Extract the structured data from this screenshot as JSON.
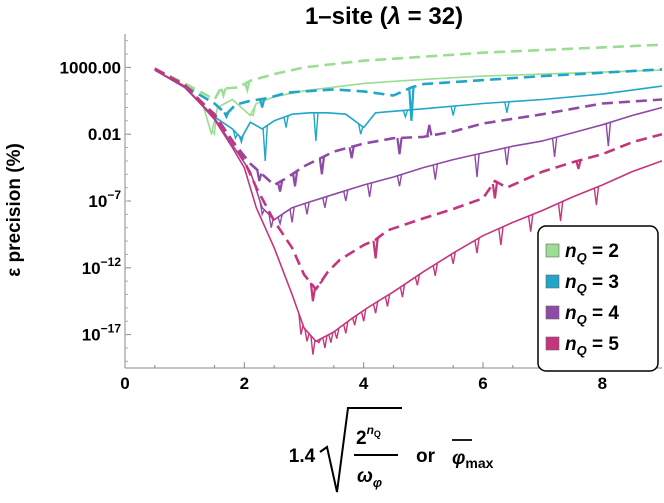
{
  "chart_data": {
    "type": "line",
    "title_prefix": "1–site (",
    "title_lambda": "λ",
    "title_value": " = 32)",
    "ylabel": "ε precision (%)",
    "xlabel": {
      "coef": "1.4",
      "num_base": "2",
      "num_sup": "n",
      "num_sup_sub": "Q",
      "den": "ω",
      "den_sub": "φ",
      "or": "or",
      "phi": "φ",
      "phi_sub": "max"
    },
    "xlim": [
      0,
      9
    ],
    "ylim_log10": [
      -19.5,
      5.5
    ],
    "yscale": "log",
    "x_ticks": [
      "0",
      "2",
      "4",
      "6",
      "8"
    ],
    "y_ticks": [
      {
        "log": 3,
        "base": "1000.00",
        "exp": ""
      },
      {
        "log": -2,
        "base": "0.01",
        "exp": ""
      },
      {
        "log": -7,
        "base": "10",
        "exp": "−7"
      },
      {
        "log": -12,
        "base": "10",
        "exp": "−12"
      },
      {
        "log": -17,
        "base": "10",
        "exp": "−17"
      }
    ],
    "legend_position": "right",
    "legend": [
      {
        "n": "n",
        "sub": "Q",
        "eq": " = 2",
        "color": "#9bdd93"
      },
      {
        "n": "n",
        "sub": "Q",
        "eq": " = 3",
        "color": "#1fa6c9"
      },
      {
        "n": "n",
        "sub": "Q",
        "eq": " = 4",
        "color": "#8e4aa6"
      },
      {
        "n": "n",
        "sub": "Q",
        "eq": " = 5",
        "color": "#c4357c"
      }
    ],
    "series": [
      {
        "nQ": 2,
        "style": "solid",
        "color": "#9bdd93",
        "points": [
          [
            0.5,
            2.8
          ],
          [
            1.0,
            1.5
          ],
          [
            1.3,
            0.3
          ],
          [
            1.45,
            -2.0
          ],
          [
            1.55,
            0.0
          ],
          [
            1.8,
            0.6
          ],
          [
            2.1,
            -0.6
          ],
          [
            2.2,
            0.3
          ],
          [
            2.5,
            0.8
          ],
          [
            3.0,
            1.25
          ],
          [
            4.0,
            1.8
          ],
          [
            5.0,
            2.1
          ],
          [
            6.0,
            2.35
          ],
          [
            7.0,
            2.5
          ],
          [
            8.0,
            2.65
          ],
          [
            9.0,
            2.8
          ]
        ],
        "spikes": [
          [
            1.5,
            -2.0
          ],
          [
            2.15,
            -0.6
          ]
        ]
      },
      {
        "nQ": 2,
        "style": "dashed",
        "color": "#9bdd93",
        "points": [
          [
            0.5,
            2.9
          ],
          [
            1.0,
            1.8
          ],
          [
            1.5,
            0.6
          ],
          [
            1.6,
            1.4
          ],
          [
            1.9,
            1.5
          ],
          [
            2.1,
            2.0
          ],
          [
            2.5,
            2.5
          ],
          [
            3.0,
            3.0
          ],
          [
            4.0,
            3.5
          ],
          [
            5.0,
            3.8
          ],
          [
            6.0,
            4.1
          ],
          [
            7.0,
            4.3
          ],
          [
            8.0,
            4.5
          ],
          [
            9.0,
            4.7
          ]
        ],
        "spikes": [
          [
            1.65,
            0.9
          ],
          [
            2.05,
            1.3
          ]
        ]
      },
      {
        "nQ": 3,
        "style": "solid",
        "color": "#1fa6c9",
        "points": [
          [
            0.5,
            2.8
          ],
          [
            1.0,
            1.5
          ],
          [
            1.5,
            -0.7
          ],
          [
            1.8,
            -1.6
          ],
          [
            1.95,
            -2.3
          ],
          [
            2.1,
            -1.1
          ],
          [
            2.3,
            -1.6
          ],
          [
            2.5,
            -1.0
          ],
          [
            2.8,
            -0.5
          ],
          [
            3.1,
            -0.4
          ],
          [
            3.4,
            -0.4
          ],
          [
            3.7,
            -0.5
          ],
          [
            4.0,
            -1.5
          ],
          [
            4.2,
            -0.4
          ],
          [
            5.0,
            -0.1
          ],
          [
            6.0,
            0.3
          ],
          [
            7.0,
            0.6
          ],
          [
            8.0,
            1.0
          ],
          [
            9.0,
            1.6
          ]
        ],
        "spikes": [
          [
            1.85,
            -2.3
          ],
          [
            1.95,
            -2.6
          ],
          [
            2.35,
            -4.0
          ],
          [
            2.7,
            -1.5
          ],
          [
            3.2,
            -2.5
          ],
          [
            3.95,
            -2.0
          ],
          [
            4.7,
            -0.7
          ],
          [
            5.5,
            -0.6
          ],
          [
            6.4,
            -0.4
          ]
        ]
      },
      {
        "nQ": 3,
        "style": "dashed",
        "color": "#1fa6c9",
        "points": [
          [
            0.5,
            2.9
          ],
          [
            1.0,
            1.6
          ],
          [
            1.5,
            0.3
          ],
          [
            1.7,
            -0.5
          ],
          [
            1.85,
            0.2
          ],
          [
            2.1,
            0.5
          ],
          [
            2.4,
            0.7
          ],
          [
            2.7,
            1.1
          ],
          [
            3.0,
            1.2
          ],
          [
            3.5,
            1.35
          ],
          [
            4.0,
            1.2
          ],
          [
            4.5,
            0.9
          ],
          [
            4.8,
            1.5
          ],
          [
            5.0,
            1.75
          ],
          [
            6.0,
            2.05
          ],
          [
            7.0,
            2.35
          ],
          [
            8.0,
            2.6
          ],
          [
            9.0,
            2.85
          ]
        ],
        "spikes": [
          [
            1.7,
            -0.7
          ],
          [
            2.3,
            0.0
          ],
          [
            4.8,
            -1.0
          ]
        ]
      },
      {
        "nQ": 4,
        "style": "solid",
        "color": "#8e4aa6",
        "points": [
          [
            0.5,
            2.8
          ],
          [
            1.0,
            1.5
          ],
          [
            1.5,
            -0.8
          ],
          [
            1.8,
            -2.8
          ],
          [
            2.1,
            -4.8
          ],
          [
            2.3,
            -7.5
          ],
          [
            2.5,
            -8.4
          ],
          [
            2.8,
            -7.5
          ],
          [
            3.0,
            -7.2
          ],
          [
            3.5,
            -6.5
          ],
          [
            4.0,
            -5.8
          ],
          [
            4.5,
            -5.2
          ],
          [
            5.0,
            -4.5
          ],
          [
            5.5,
            -3.9
          ],
          [
            6.0,
            -3.4
          ],
          [
            6.5,
            -2.9
          ],
          [
            7.0,
            -2.5
          ],
          [
            7.5,
            -1.9
          ],
          [
            8.0,
            -1.3
          ],
          [
            8.5,
            -0.6
          ],
          [
            9.0,
            0.0
          ]
        ],
        "spikes": [
          [
            2.3,
            -8.0
          ],
          [
            2.45,
            -9.0
          ],
          [
            2.6,
            -8.7
          ],
          [
            2.8,
            -8.6
          ],
          [
            3.05,
            -8.0
          ],
          [
            3.35,
            -7.5
          ],
          [
            3.7,
            -7.0
          ],
          [
            4.1,
            -6.7
          ],
          [
            4.6,
            -5.9
          ],
          [
            5.2,
            -5.4
          ],
          [
            5.9,
            -5.2
          ],
          [
            6.4,
            -4.3
          ],
          [
            7.2,
            -3.7
          ],
          [
            8.1,
            -2.9
          ]
        ]
      },
      {
        "nQ": 4,
        "style": "dashed",
        "color": "#8e4aa6",
        "points": [
          [
            0.5,
            2.9
          ],
          [
            1.0,
            1.6
          ],
          [
            1.5,
            -0.5
          ],
          [
            1.8,
            -2.5
          ],
          [
            2.1,
            -4.2
          ],
          [
            2.3,
            -5.0
          ],
          [
            2.5,
            -5.8
          ],
          [
            2.7,
            -5.3
          ],
          [
            3.0,
            -4.4
          ],
          [
            3.5,
            -3.3
          ],
          [
            4.0,
            -2.7
          ],
          [
            4.5,
            -2.3
          ],
          [
            5.0,
            -2.2
          ],
          [
            5.5,
            -1.8
          ],
          [
            6.0,
            -1.2
          ],
          [
            7.0,
            -0.5
          ],
          [
            8.0,
            0.3
          ],
          [
            9.0,
            0.6
          ]
        ],
        "spikes": [
          [
            2.25,
            -5.5
          ],
          [
            2.6,
            -6.3
          ],
          [
            2.85,
            -5.9
          ],
          [
            3.3,
            -5.0
          ],
          [
            3.8,
            -3.8
          ],
          [
            4.6,
            -3.5
          ],
          [
            5.1,
            -1.3
          ]
        ]
      },
      {
        "nQ": 5,
        "style": "solid",
        "color": "#c4357c",
        "points": [
          [
            0.5,
            2.8
          ],
          [
            1.0,
            1.6
          ],
          [
            1.5,
            -0.9
          ],
          [
            1.8,
            -3.0
          ],
          [
            2.0,
            -4.5
          ],
          [
            2.2,
            -7.5
          ],
          [
            2.5,
            -10.5
          ],
          [
            2.8,
            -14.0
          ],
          [
            3.0,
            -16.5
          ],
          [
            3.2,
            -17.5
          ],
          [
            3.5,
            -16.8
          ],
          [
            3.8,
            -15.8
          ],
          [
            4.1,
            -14.9
          ],
          [
            4.5,
            -13.8
          ],
          [
            5.0,
            -12.3
          ],
          [
            5.5,
            -10.9
          ],
          [
            6.0,
            -9.6
          ],
          [
            6.5,
            -8.6
          ],
          [
            7.0,
            -7.7
          ],
          [
            7.5,
            -6.7
          ],
          [
            8.0,
            -5.8
          ],
          [
            8.5,
            -4.8
          ],
          [
            9.0,
            -4.0
          ]
        ],
        "spikes": [
          [
            2.95,
            -17.0
          ],
          [
            3.05,
            -17.5
          ],
          [
            3.15,
            -18.5
          ],
          [
            3.25,
            -17.6
          ],
          [
            3.35,
            -18.0
          ],
          [
            3.45,
            -17.6
          ],
          [
            3.55,
            -17.3
          ],
          [
            3.7,
            -16.9
          ],
          [
            3.85,
            -16.3
          ],
          [
            4.0,
            -16.0
          ],
          [
            4.2,
            -15.4
          ],
          [
            4.4,
            -14.9
          ],
          [
            4.65,
            -14.2
          ],
          [
            4.9,
            -13.3
          ],
          [
            5.2,
            -12.6
          ],
          [
            5.5,
            -11.7
          ],
          [
            5.9,
            -10.9
          ],
          [
            6.3,
            -10.3
          ],
          [
            6.8,
            -9.3
          ],
          [
            7.3,
            -8.5
          ],
          [
            7.9,
            -7.3
          ]
        ]
      },
      {
        "nQ": 5,
        "style": "dashed",
        "color": "#c4357c",
        "points": [
          [
            0.5,
            2.9
          ],
          [
            1.0,
            1.7
          ],
          [
            1.5,
            -0.6
          ],
          [
            1.8,
            -2.5
          ],
          [
            2.0,
            -4.0
          ],
          [
            2.2,
            -6.0
          ],
          [
            2.5,
            -8.5
          ],
          [
            2.8,
            -10.5
          ],
          [
            3.0,
            -12.5
          ],
          [
            3.2,
            -13.6
          ],
          [
            3.4,
            -12.3
          ],
          [
            3.6,
            -11.4
          ],
          [
            4.0,
            -10.3
          ],
          [
            4.2,
            -9.9
          ],
          [
            4.4,
            -9.2
          ],
          [
            5.0,
            -8.3
          ],
          [
            5.5,
            -7.6
          ],
          [
            6.0,
            -6.8
          ],
          [
            6.2,
            -5.5
          ],
          [
            6.4,
            -6.0
          ],
          [
            7.0,
            -4.8
          ],
          [
            7.5,
            -4.1
          ],
          [
            8.0,
            -3.5
          ],
          [
            8.5,
            -2.6
          ],
          [
            9.0,
            -2.0
          ]
        ],
        "spikes": [
          [
            3.15,
            -14.5
          ],
          [
            3.3,
            -13.0
          ],
          [
            4.2,
            -11.3
          ],
          [
            6.2,
            -6.8
          ],
          [
            7.6,
            -4.6
          ]
        ]
      }
    ]
  }
}
